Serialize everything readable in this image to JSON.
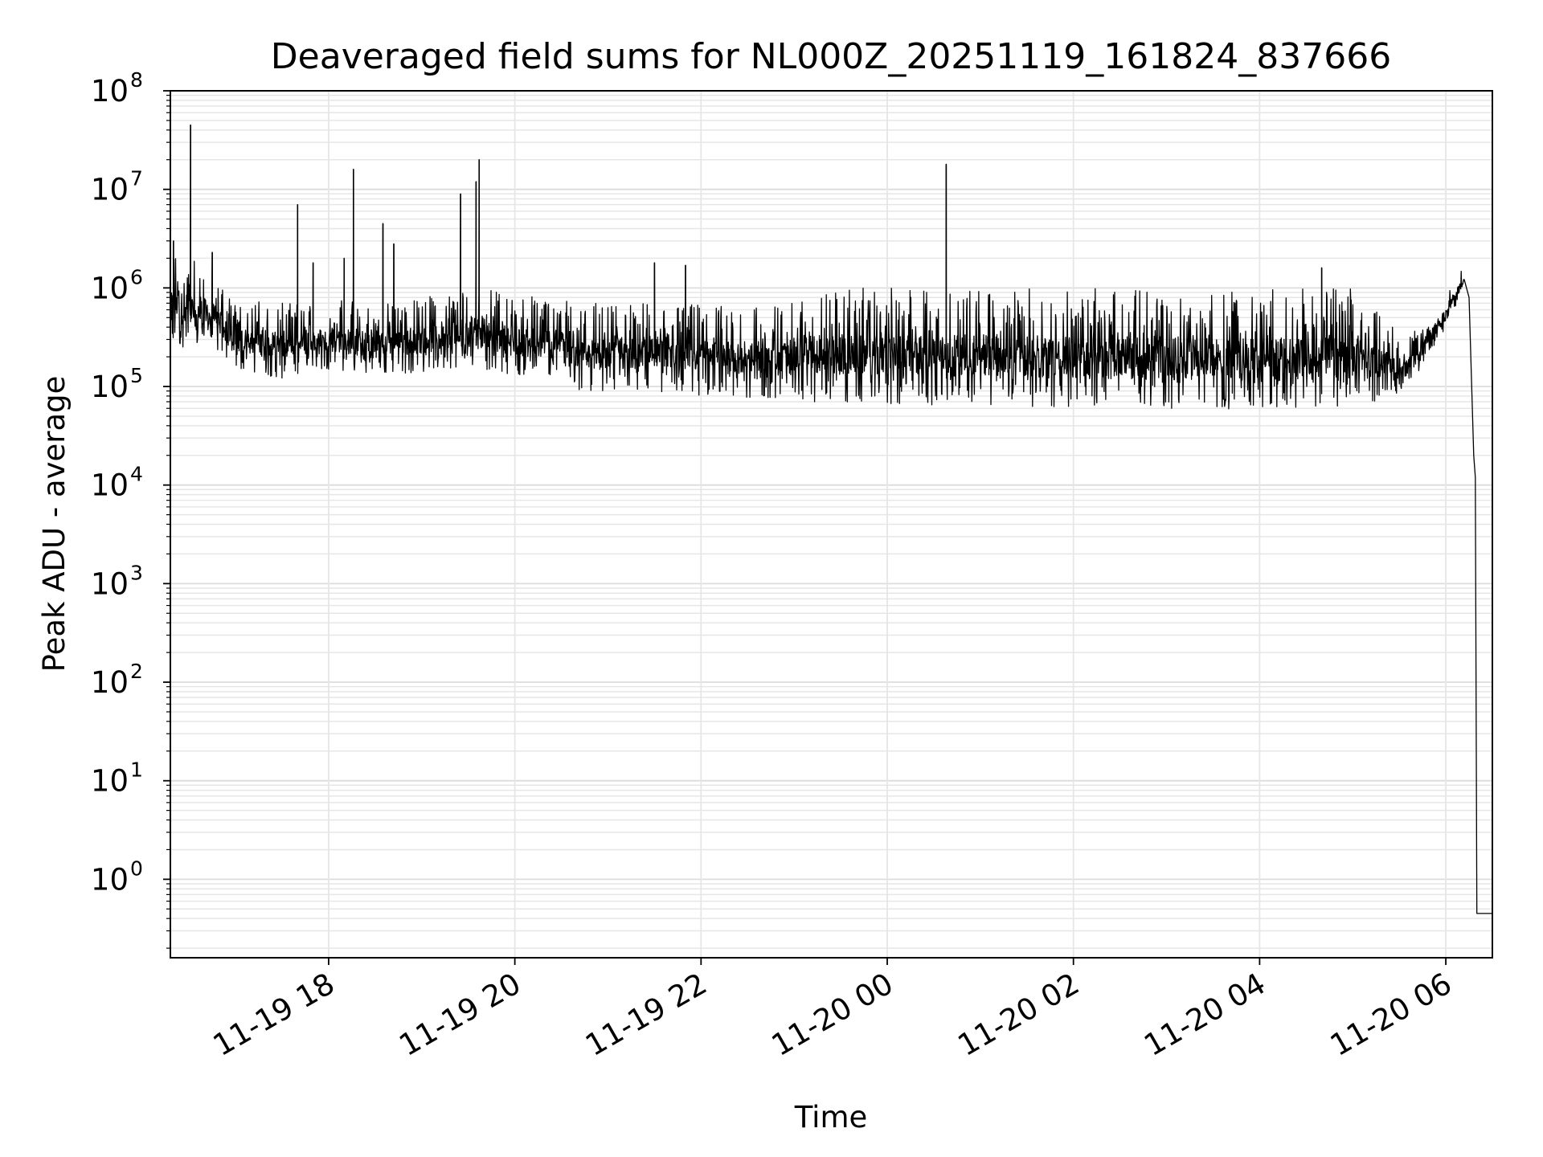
{
  "chart_data": {
    "type": "line",
    "title": "Deaveraged field sums for NL000Z_20251119_161824_837666",
    "xlabel": "Time",
    "ylabel": "Peak ADU - average",
    "yscale": "log",
    "ylim": [
      0.16,
      100000000
    ],
    "xlim": [
      "2025-11-19 16:18",
      "2025-11-20 06:30"
    ],
    "grid": true,
    "x_ticks": [
      {
        "t": "2025-11-19 18:00",
        "label": "11-19 18"
      },
      {
        "t": "2025-11-19 20:00",
        "label": "11-19 20"
      },
      {
        "t": "2025-11-19 22:00",
        "label": "11-19 22"
      },
      {
        "t": "2025-11-20 00:00",
        "label": "11-20 00"
      },
      {
        "t": "2025-11-20 02:00",
        "label": "11-20 02"
      },
      {
        "t": "2025-11-20 04:00",
        "label": "11-20 04"
      },
      {
        "t": "2025-11-20 06:00",
        "label": "11-20 06"
      }
    ],
    "y_ticks": [
      {
        "value": 1,
        "base": "10",
        "exp": "0"
      },
      {
        "value": 10,
        "base": "10",
        "exp": "1"
      },
      {
        "value": 100,
        "base": "10",
        "exp": "2"
      },
      {
        "value": 1000,
        "base": "10",
        "exp": "3"
      },
      {
        "value": 10000,
        "base": "10",
        "exp": "4"
      },
      {
        "value": 100000,
        "base": "10",
        "exp": "5"
      },
      {
        "value": 1000000,
        "base": "10",
        "exp": "6"
      },
      {
        "value": 10000000,
        "base": "10",
        "exp": "7"
      },
      {
        "value": 100000000,
        "base": "10",
        "exp": "8"
      }
    ],
    "series": [
      {
        "color": "#000000",
        "baseline": [
          {
            "t": "2025-11-19 16:18",
            "lo": 250000,
            "hi": 2500000
          },
          {
            "t": "2025-11-19 16:45",
            "lo": 250000,
            "hi": 1500000
          },
          {
            "t": "2025-11-19 17:00",
            "lo": 150000,
            "hi": 800000
          },
          {
            "t": "2025-11-19 17:30",
            "lo": 120000,
            "hi": 700000
          },
          {
            "t": "2025-11-19 18:00",
            "lo": 150000,
            "hi": 800000
          },
          {
            "t": "2025-11-19 18:30",
            "lo": 130000,
            "hi": 700000
          },
          {
            "t": "2025-11-19 19:00",
            "lo": 140000,
            "hi": 800000
          },
          {
            "t": "2025-11-19 19:30",
            "lo": 160000,
            "hi": 1000000
          },
          {
            "t": "2025-11-19 20:00",
            "lo": 130000,
            "hi": 900000
          },
          {
            "t": "2025-11-19 20:30",
            "lo": 130000,
            "hi": 800000
          },
          {
            "t": "2025-11-19 20:40",
            "lo": 90000,
            "hi": 700000
          },
          {
            "t": "2025-11-19 21:30",
            "lo": 90000,
            "hi": 700000
          },
          {
            "t": "2025-11-19 22:00",
            "lo": 80000,
            "hi": 700000
          },
          {
            "t": "2025-11-19 23:00",
            "lo": 75000,
            "hi": 700000
          },
          {
            "t": "2025-11-19 23:10",
            "lo": 70000,
            "hi": 1000000
          },
          {
            "t": "2025-11-20 00:00",
            "lo": 65000,
            "hi": 1000000
          },
          {
            "t": "2025-11-20 01:00",
            "lo": 65000,
            "hi": 1000000
          },
          {
            "t": "2025-11-20 02:00",
            "lo": 60000,
            "hi": 1000000
          },
          {
            "t": "2025-11-20 03:00",
            "lo": 60000,
            "hi": 1000000
          },
          {
            "t": "2025-11-20 04:00",
            "lo": 55000,
            "hi": 1000000
          },
          {
            "t": "2025-11-20 05:00",
            "lo": 60000,
            "hi": 1000000
          },
          {
            "t": "2025-11-20 05:35",
            "lo": 90000,
            "hi": 300000
          },
          {
            "t": "2025-11-20 06:00",
            "lo": 400000,
            "hi": 800000
          },
          {
            "t": "2025-11-20 06:12",
            "lo": 1000000,
            "hi": 1700000
          }
        ],
        "points": [
          {
            "t": "2025-11-20 06:15",
            "y": 800000
          },
          {
            "t": "2025-11-20 06:18",
            "y": 20000
          },
          {
            "t": "2025-11-20 06:19",
            "y": 12000
          },
          {
            "t": "2025-11-20 06:20",
            "y": 0.45
          },
          {
            "t": "2025-11-20 06:30",
            "y": 0.45
          }
        ],
        "spikes": [
          {
            "t": "2025-11-19 16:20",
            "y": 3000000
          },
          {
            "t": "2025-11-19 16:31",
            "y": 45000000
          },
          {
            "t": "2025-11-19 16:45",
            "y": 2300000
          },
          {
            "t": "2025-11-19 17:40",
            "y": 7000000
          },
          {
            "t": "2025-11-19 17:50",
            "y": 1800000
          },
          {
            "t": "2025-11-19 18:10",
            "y": 2000000
          },
          {
            "t": "2025-11-19 18:16",
            "y": 16000000
          },
          {
            "t": "2025-11-19 18:35",
            "y": 4500000
          },
          {
            "t": "2025-11-19 18:42",
            "y": 2800000
          },
          {
            "t": "2025-11-19 19:25",
            "y": 9000000
          },
          {
            "t": "2025-11-19 19:35",
            "y": 12000000
          },
          {
            "t": "2025-11-19 19:37",
            "y": 20000000
          },
          {
            "t": "2025-11-19 21:30",
            "y": 1800000
          },
          {
            "t": "2025-11-19 21:50",
            "y": 1700000
          },
          {
            "t": "2025-11-20 00:38",
            "y": 18000000
          },
          {
            "t": "2025-11-20 04:40",
            "y": 1600000
          }
        ]
      }
    ]
  }
}
